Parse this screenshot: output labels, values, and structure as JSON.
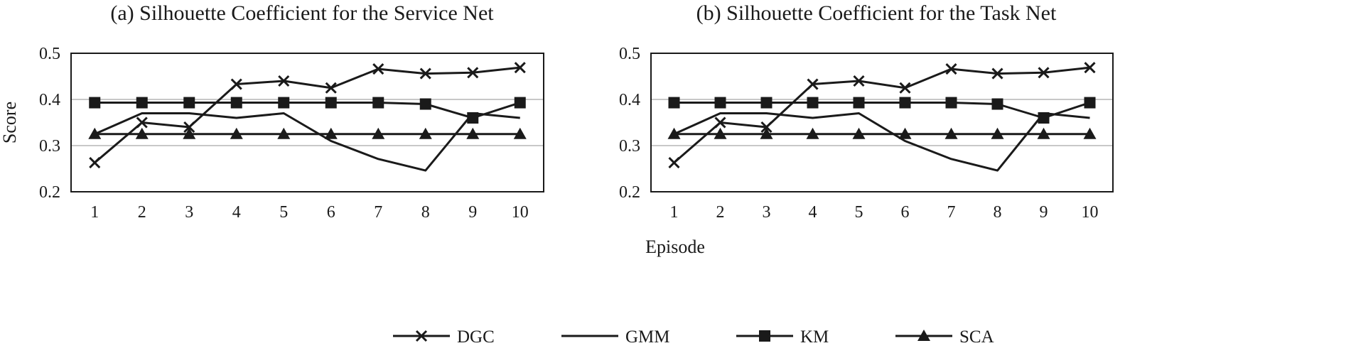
{
  "chart_data": [
    {
      "type": "line",
      "title": "(a) Silhouette Coefficient for the Service Net",
      "xlabel": "Episode",
      "ylabel": "Score",
      "categories": [
        "1",
        "2",
        "3",
        "4",
        "5",
        "6",
        "7",
        "8",
        "9",
        "10"
      ],
      "yticks": [
        "0.2",
        "0.3",
        "0.4",
        "0.5"
      ],
      "ylim": [
        0.2,
        0.5
      ],
      "grid": true,
      "series": [
        {
          "name": "DGC",
          "marker": "x",
          "values": [
            0.263,
            0.35,
            0.34,
            0.433,
            0.44,
            0.425,
            0.466,
            0.456,
            0.458,
            0.469
          ]
        },
        {
          "name": "GMM",
          "marker": "none",
          "values": [
            0.325,
            0.37,
            0.37,
            0.36,
            0.37,
            0.31,
            0.271,
            0.246,
            0.37,
            0.36
          ]
        },
        {
          "name": "KM",
          "marker": "square",
          "values": [
            0.393,
            0.393,
            0.393,
            0.393,
            0.393,
            0.393,
            0.393,
            0.39,
            0.36,
            0.393
          ]
        },
        {
          "name": "SCA",
          "marker": "triangle",
          "values": [
            0.325,
            0.325,
            0.325,
            0.325,
            0.325,
            0.325,
            0.325,
            0.325,
            0.325,
            0.325
          ]
        }
      ]
    },
    {
      "type": "line",
      "title": "(b) Silhouette Coefficient for the Task Net",
      "xlabel": "",
      "ylabel": "",
      "categories": [
        "1",
        "2",
        "3",
        "4",
        "5",
        "6",
        "7",
        "8",
        "9",
        "10"
      ],
      "yticks": [
        "0.2",
        "0.3",
        "0.4",
        "0.5"
      ],
      "ylim": [
        0.2,
        0.5
      ],
      "grid": true,
      "series": [
        {
          "name": "DGC",
          "marker": "x",
          "values": [
            0.263,
            0.35,
            0.34,
            0.433,
            0.44,
            0.425,
            0.466,
            0.456,
            0.458,
            0.469
          ]
        },
        {
          "name": "GMM",
          "marker": "none",
          "values": [
            0.325,
            0.37,
            0.37,
            0.36,
            0.37,
            0.31,
            0.271,
            0.246,
            0.37,
            0.36
          ]
        },
        {
          "name": "KM",
          "marker": "square",
          "values": [
            0.393,
            0.393,
            0.393,
            0.393,
            0.393,
            0.393,
            0.393,
            0.39,
            0.36,
            0.393
          ]
        },
        {
          "name": "SCA",
          "marker": "triangle",
          "values": [
            0.325,
            0.325,
            0.325,
            0.325,
            0.325,
            0.325,
            0.325,
            0.325,
            0.325,
            0.325
          ]
        }
      ]
    }
  ],
  "legend": {
    "placement": "bottom",
    "items": [
      {
        "name": "DGC",
        "marker": "x"
      },
      {
        "name": "GMM",
        "marker": "none"
      },
      {
        "name": "KM",
        "marker": "square"
      },
      {
        "name": "SCA",
        "marker": "triangle"
      }
    ]
  },
  "colors": {
    "line": "#1a1a1a",
    "grid": "#c8c8c8",
    "frame": "#1a1a1a"
  }
}
